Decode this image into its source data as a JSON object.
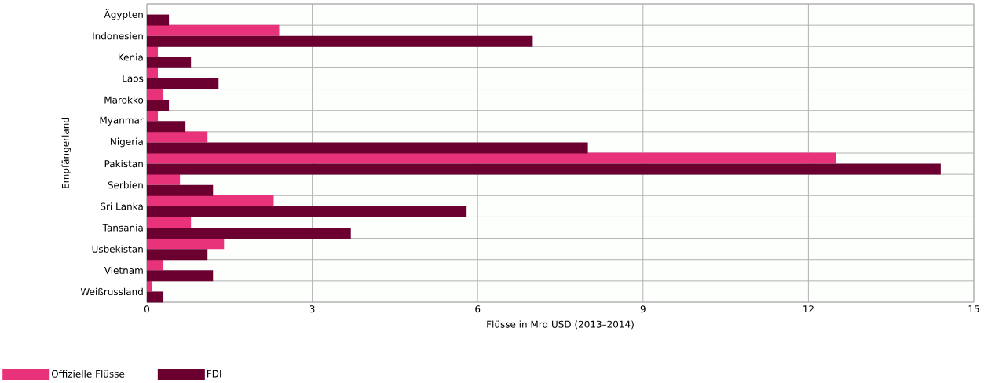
{
  "chart_data": {
    "type": "bar",
    "orientation": "horizontal",
    "xlabel": "Flüsse in Mrd USD (2013–2014)",
    "ylabel": "Empfängerland",
    "categories": [
      "Ägypten",
      "Indonesien",
      "Kenia",
      "Laos",
      "Marokko",
      "Myanmar",
      "Nigeria",
      "Pakistan",
      "Serbien",
      "Sri Lanka",
      "Tansania",
      "Usbekistan",
      "Vietnam",
      "Weißrussland"
    ],
    "series": [
      {
        "name": "Offizielle Flüsse",
        "color": "#e8327a",
        "values": [
          null,
          2.4,
          0.2,
          0.2,
          0.3,
          0.2,
          1.1,
          12.5,
          0.6,
          2.3,
          0.8,
          1.4,
          0.3,
          0.1
        ]
      },
      {
        "name": "FDI",
        "color": "#6b0030",
        "values": [
          0.4,
          7.0,
          0.8,
          1.3,
          0.4,
          0.7,
          8.0,
          14.4,
          1.2,
          5.8,
          3.7,
          1.1,
          1.2,
          0.3
        ]
      }
    ],
    "xlim": [
      0,
      15
    ],
    "xticks": [
      0,
      3,
      6,
      9,
      12,
      15
    ],
    "grid": true,
    "legend": "bottom left"
  }
}
